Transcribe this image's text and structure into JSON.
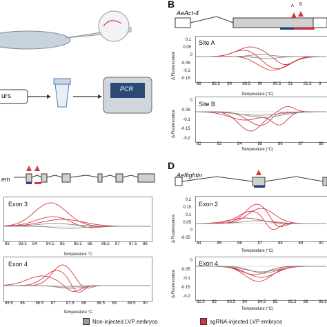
{
  "panels": {
    "A": {
      "illustration": {
        "tube_label": "urs",
        "machine_label": "PCR"
      }
    },
    "B": {
      "letter": "B",
      "gene": "AeAct-4",
      "site_labels": [
        "A",
        "B"
      ],
      "plots": [
        {
          "title": "Site A",
          "ylabel": "Δ Fluorescence",
          "xlabel": "Temperature (°C)",
          "xticks": [
            "88",
            "88.5",
            "89",
            "89.5",
            "90",
            "90.5",
            "91",
            "91.5",
            "9"
          ],
          "yticks": [
            "0.1",
            "0.05",
            "0",
            "-0.05",
            "-0.1",
            "-0.15"
          ]
        },
        {
          "title": "Site B",
          "ylabel": "Δ Fluorescence",
          "xlabel": "Temperature (°C)",
          "xticks": [
            "82",
            "83",
            "84",
            "85",
            "86",
            "87",
            "88"
          ],
          "yticks": [
            "0",
            "-0.05",
            "-0.1",
            "-0.15",
            "-0.2"
          ]
        }
      ]
    },
    "C": {
      "gene": "em",
      "plots": [
        {
          "title": "Exon 3",
          "xlabel": "Temperature °C",
          "xticks": [
            "83",
            "83.5",
            "84",
            "84.5",
            "85",
            "85.5",
            "86",
            "86.5",
            "87",
            "87.5",
            "88"
          ]
        },
        {
          "title": "Exon 4",
          "xlabel": "Temperature °C",
          "xticks": [
            "85.5",
            "86",
            "86.5",
            "87",
            "87.5",
            "88",
            "88.5",
            "89",
            "89.5",
            "90"
          ]
        }
      ]
    },
    "D": {
      "letter": "D",
      "gene": "Aeflightin",
      "plots": [
        {
          "title": "Exon 2",
          "ylabel": "Δ Fluorescence",
          "xlabel": "Temperature (°C)",
          "xticks": [
            "84",
            "85",
            "86",
            "87",
            "88",
            "89",
            "90"
          ],
          "yticks": [
            "0.2",
            "0.15",
            "0.1",
            "0.05",
            "0",
            "-0.05"
          ]
        },
        {
          "title": "Exon 4",
          "ylabel": "Δ Fluorescence",
          "xlabel": "Temperature (°C)",
          "xticks": [
            "82.5",
            "83",
            "83.5",
            "84",
            "84.5",
            "85",
            "85.5",
            "86",
            "86.5"
          ],
          "yticks": [
            "0",
            "-0.05",
            "-0.1",
            "-0.15",
            "-0.2"
          ]
        }
      ]
    }
  },
  "legend": [
    {
      "label": "Non-injected LVP embryos",
      "color": "#9a9a9a"
    },
    {
      "label": "sgRNA-injected LVP embryos",
      "color": "#d9333f"
    }
  ],
  "colors": {
    "red": "#d9333f",
    "blue": "#1f3f8f",
    "gray": "#888888"
  }
}
